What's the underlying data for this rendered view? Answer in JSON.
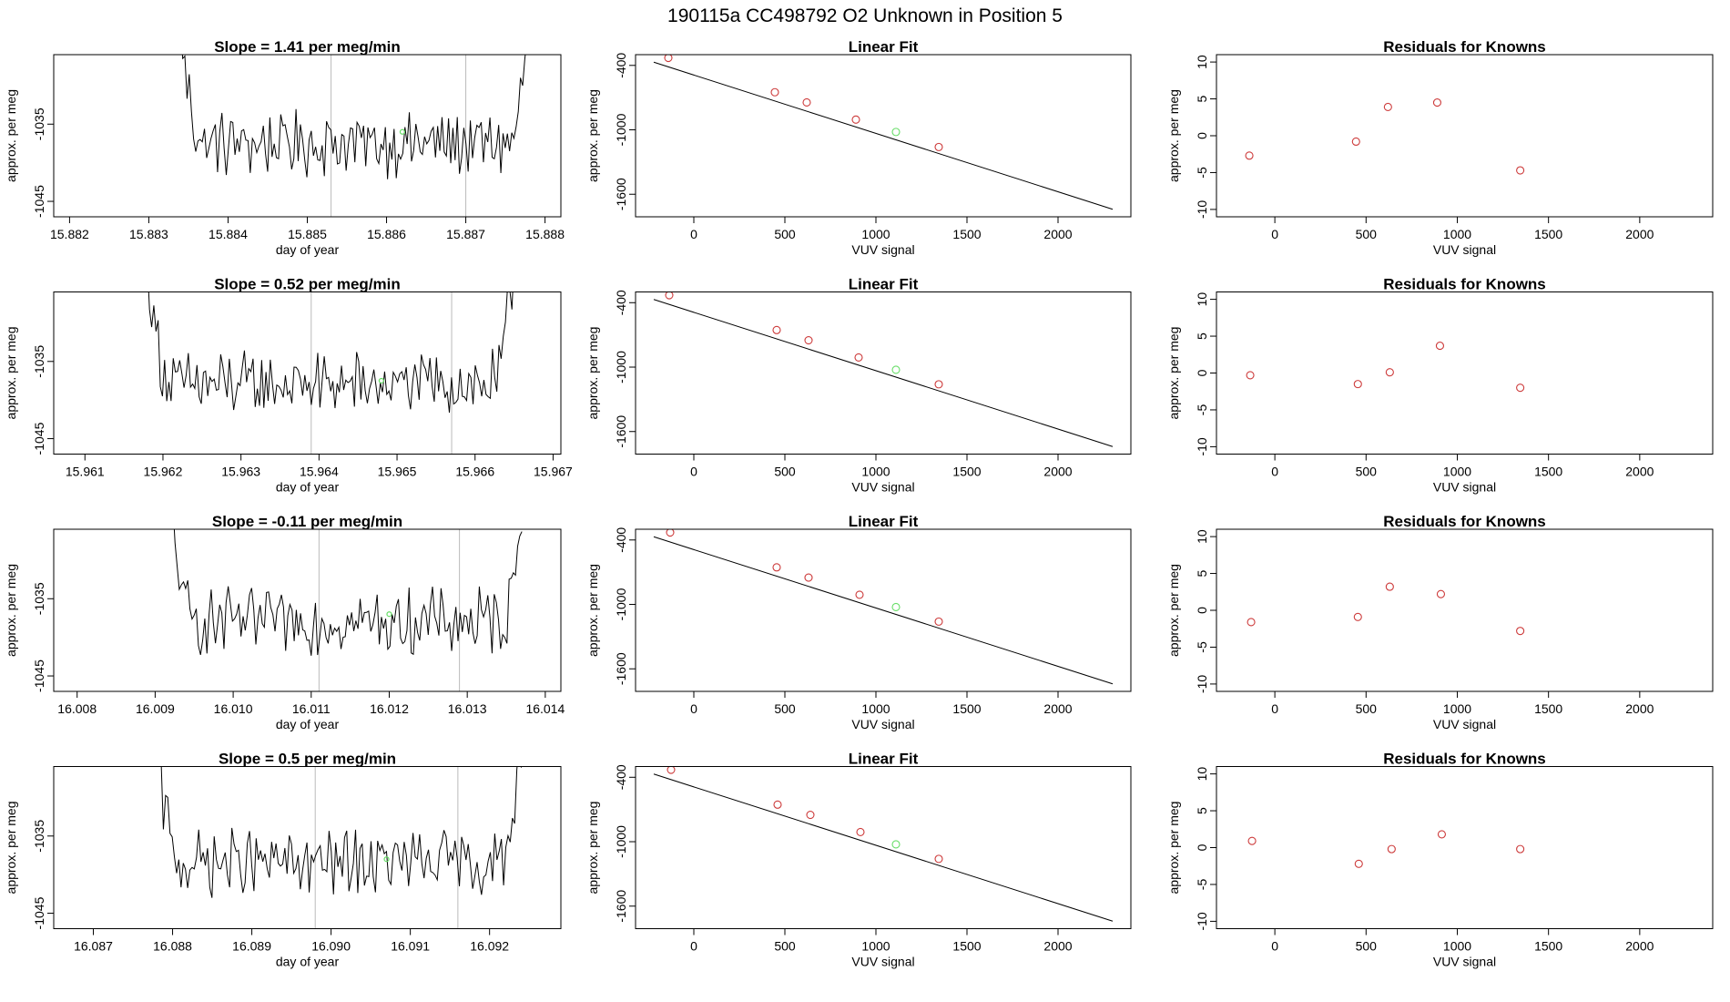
{
  "main_title": "190115a      CC498792   O2 Unknown in Position  5",
  "colors": {
    "trace": "#000000",
    "known_point": "#cd3b3b",
    "unknown_point": "#66dd66",
    "marker_line": "#bbbbbb"
  },
  "chart_data": [
    {
      "row": 1,
      "panels": [
        {
          "type": "line",
          "title": "Slope =  1.41  per meg/min",
          "xlabel": "day of year",
          "ylabel": "approx. per meg",
          "xlim": [
            15.8818,
            15.8882
          ],
          "ylim": [
            -1047,
            -1026
          ],
          "xticks": [
            15.882,
            15.883,
            15.884,
            15.885,
            15.886,
            15.887,
            15.888
          ],
          "xtick_labels": [
            "15.882",
            "15.883",
            "15.884",
            "15.885",
            "15.886",
            "15.887",
            "15.888"
          ],
          "yticks": [
            -1045,
            -1035
          ],
          "ytick_labels": [
            "-1045",
            "-1035"
          ],
          "x_start": 15.8834,
          "x_end": 15.8878,
          "n_points": 160,
          "baseline": -1037.5,
          "vlines": [
            15.8853,
            15.887
          ],
          "highlight": {
            "x": 15.8862,
            "y": -1036
          }
        },
        {
          "type": "scatter",
          "title": "Linear Fit",
          "xlabel": "VUV signal",
          "ylabel": "approx. per meg",
          "xlim": [
            -320,
            2400
          ],
          "ylim": [
            -1810,
            -300
          ],
          "xticks": [
            0,
            500,
            1000,
            1500,
            2000
          ],
          "xtick_labels": [
            "0",
            "500",
            "1000",
            "1500",
            "2000"
          ],
          "yticks": [
            -400,
            -1000,
            -1600
          ],
          "ytick_labels": [
            "-400",
            "-1000",
            "-1600"
          ],
          "line": {
            "x": [
              -220,
              2300
            ],
            "y": [
              -370,
              -1740
            ]
          },
          "knowns": {
            "x": [
              -140,
              445,
              620,
              890,
              1345
            ],
            "y": [
              -330,
              -650,
              -745,
              -905,
              -1160
            ]
          },
          "unknowns": {
            "x": [
              1110
            ],
            "y": [
              -1020
            ]
          }
        },
        {
          "type": "scatter",
          "title": "Residuals for Knowns",
          "xlabel": "VUV signal",
          "ylabel": "approx. per meg",
          "xlim": [
            -320,
            2400
          ],
          "ylim": [
            -11,
            11
          ],
          "xticks": [
            0,
            500,
            1000,
            1500,
            2000
          ],
          "xtick_labels": [
            "0",
            "500",
            "1000",
            "1500",
            "2000"
          ],
          "yticks": [
            -10,
            -5,
            0,
            5,
            10
          ],
          "ytick_labels": [
            "-10",
            "-5",
            "0",
            "5",
            "10"
          ],
          "knowns": {
            "x": [
              -140,
              445,
              620,
              890,
              1345
            ],
            "y": [
              -2.7,
              -0.8,
              3.9,
              4.5,
              -4.7
            ]
          }
        }
      ]
    },
    {
      "row": 2,
      "panels": [
        {
          "type": "line",
          "title": "Slope =  0.52  per meg/min",
          "xlabel": "day of year",
          "ylabel": "approx. per meg",
          "xlim": [
            15.9606,
            15.9671
          ],
          "ylim": [
            -1047,
            -1026
          ],
          "xticks": [
            15.961,
            15.962,
            15.963,
            15.964,
            15.965,
            15.966,
            15.967
          ],
          "xtick_labels": [
            "15.961",
            "15.962",
            "15.963",
            "15.964",
            "15.965",
            "15.966",
            "15.967"
          ],
          "yticks": [
            -1045,
            -1035
          ],
          "ytick_labels": [
            "-1045",
            "-1035"
          ],
          "x_start": 15.9618,
          "x_end": 15.9665,
          "n_points": 170,
          "baseline": -1038,
          "vlines": [
            15.9639,
            15.9657
          ],
          "highlight": {
            "x": 15.9648,
            "y": -1037.5
          }
        },
        {
          "type": "scatter",
          "title": "Linear Fit",
          "xlabel": "VUV signal",
          "ylabel": "approx. per meg",
          "xlim": [
            -320,
            2400
          ],
          "ylim": [
            -1810,
            -300
          ],
          "xticks": [
            0,
            500,
            1000,
            1500,
            2000
          ],
          "xtick_labels": [
            "0",
            "500",
            "1000",
            "1500",
            "2000"
          ],
          "yticks": [
            -400,
            -1000,
            -1600
          ],
          "ytick_labels": [
            "-400",
            "-1000",
            "-1600"
          ],
          "line": {
            "x": [
              -220,
              2300
            ],
            "y": [
              -370,
              -1740
            ]
          },
          "knowns": {
            "x": [
              -135,
              455,
              630,
              905,
              1345
            ],
            "y": [
              -330,
              -655,
              -750,
              -910,
              -1160
            ]
          },
          "unknowns": {
            "x": [
              1110
            ],
            "y": [
              -1025
            ]
          }
        },
        {
          "type": "scatter",
          "title": "Residuals for Knowns",
          "xlabel": "VUV signal",
          "ylabel": "approx. per meg",
          "xlim": [
            -320,
            2400
          ],
          "ylim": [
            -11,
            11
          ],
          "xticks": [
            0,
            500,
            1000,
            1500,
            2000
          ],
          "xtick_labels": [
            "0",
            "500",
            "1000",
            "1500",
            "2000"
          ],
          "yticks": [
            -10,
            -5,
            0,
            5,
            10
          ],
          "ytick_labels": [
            "-10",
            "-5",
            "0",
            "5",
            "10"
          ],
          "knowns": {
            "x": [
              -135,
              455,
              630,
              905,
              1345
            ],
            "y": [
              -0.3,
              -1.5,
              0.1,
              3.7,
              -2.0
            ]
          }
        }
      ]
    },
    {
      "row": 3,
      "panels": [
        {
          "type": "line",
          "title": "Slope =  -0.11  per meg/min",
          "xlabel": "day of year",
          "ylabel": "approx. per meg",
          "xlim": [
            16.0077,
            16.0142
          ],
          "ylim": [
            -1047,
            -1026
          ],
          "xticks": [
            16.008,
            16.009,
            16.01,
            16.011,
            16.012,
            16.013,
            16.014
          ],
          "xtick_labels": [
            "16.008",
            "16.009",
            "16.010",
            "16.011",
            "16.012",
            "16.013",
            "16.014"
          ],
          "yticks": [
            -1045,
            -1035
          ],
          "ytick_labels": [
            "-1045",
            "-1035"
          ],
          "x_start": 16.0092,
          "x_end": 16.0137,
          "n_points": 165,
          "baseline": -1038,
          "vlines": [
            16.0111,
            16.0129
          ],
          "highlight": {
            "x": 16.012,
            "y": -1037
          }
        },
        {
          "type": "scatter",
          "title": "Linear Fit",
          "xlabel": "VUV signal",
          "ylabel": "approx. per meg",
          "xlim": [
            -320,
            2400
          ],
          "ylim": [
            -1810,
            -300
          ],
          "xticks": [
            0,
            500,
            1000,
            1500,
            2000
          ],
          "xtick_labels": [
            "0",
            "500",
            "1000",
            "1500",
            "2000"
          ],
          "yticks": [
            -400,
            -1000,
            -1600
          ],
          "ytick_labels": [
            "-400",
            "-1000",
            "-1600"
          ],
          "line": {
            "x": [
              -220,
              2300
            ],
            "y": [
              -370,
              -1740
            ]
          },
          "knowns": {
            "x": [
              -130,
              455,
              630,
              910,
              1345
            ],
            "y": [
              -330,
              -655,
              -750,
              -910,
              -1160
            ]
          },
          "unknowns": {
            "x": [
              1110
            ],
            "y": [
              -1025
            ]
          }
        },
        {
          "type": "scatter",
          "title": "Residuals for Knowns",
          "xlabel": "VUV signal",
          "ylabel": "approx. per meg",
          "xlim": [
            -320,
            2400
          ],
          "ylim": [
            -11,
            11
          ],
          "xticks": [
            0,
            500,
            1000,
            1500,
            2000
          ],
          "xtick_labels": [
            "0",
            "500",
            "1000",
            "1500",
            "2000"
          ],
          "yticks": [
            -10,
            -5,
            0,
            5,
            10
          ],
          "ytick_labels": [
            "-10",
            "-5",
            "0",
            "5",
            "10"
          ],
          "knowns": {
            "x": [
              -130,
              455,
              630,
              910,
              1345
            ],
            "y": [
              -1.6,
              -0.9,
              3.2,
              2.2,
              -2.8
            ]
          }
        }
      ]
    },
    {
      "row": 4,
      "panels": [
        {
          "type": "line",
          "title": "Slope =  0.5  per meg/min",
          "xlabel": "day of year",
          "ylabel": "approx. per meg",
          "xlim": [
            16.0865,
            16.0929
          ],
          "ylim": [
            -1047,
            -1026
          ],
          "xticks": [
            16.087,
            16.088,
            16.089,
            16.09,
            16.091,
            16.092
          ],
          "xtick_labels": [
            "16.087",
            "16.088",
            "16.089",
            "16.090",
            "16.091",
            "16.092"
          ],
          "yticks": [
            -1045,
            -1035
          ],
          "ytick_labels": [
            "-1045",
            "-1035"
          ],
          "x_start": 16.0878,
          "x_end": 16.0924,
          "n_points": 165,
          "baseline": -1038.5,
          "vlines": [
            16.0898,
            16.0916
          ],
          "highlight": {
            "x": 16.0907,
            "y": -1038
          }
        },
        {
          "type": "scatter",
          "title": "Linear Fit",
          "xlabel": "VUV signal",
          "ylabel": "approx. per meg",
          "xlim": [
            -320,
            2400
          ],
          "ylim": [
            -1810,
            -300
          ],
          "xticks": [
            0,
            500,
            1000,
            1500,
            2000
          ],
          "xtick_labels": [
            "0",
            "500",
            "1000",
            "1500",
            "2000"
          ],
          "yticks": [
            -400,
            -1000,
            -1600
          ],
          "ytick_labels": [
            "-400",
            "-1000",
            "-1600"
          ],
          "line": {
            "x": [
              -220,
              2300
            ],
            "y": [
              -370,
              -1740
            ]
          },
          "knowns": {
            "x": [
              -125,
              460,
              640,
              915,
              1345
            ],
            "y": [
              -330,
              -655,
              -750,
              -910,
              -1160
            ]
          },
          "unknowns": {
            "x": [
              1110
            ],
            "y": [
              -1025
            ]
          }
        },
        {
          "type": "scatter",
          "title": "Residuals for Knowns",
          "xlabel": "VUV signal",
          "ylabel": "approx. per meg",
          "xlim": [
            -320,
            2400
          ],
          "ylim": [
            -11,
            11
          ],
          "xticks": [
            0,
            500,
            1000,
            1500,
            2000
          ],
          "xtick_labels": [
            "0",
            "500",
            "1000",
            "1500",
            "2000"
          ],
          "yticks": [
            -10,
            -5,
            0,
            5,
            10
          ],
          "ytick_labels": [
            "-10",
            "-5",
            "0",
            "5",
            "10"
          ],
          "knowns": {
            "x": [
              -125,
              460,
              640,
              915,
              1345
            ],
            "y": [
              0.9,
              -2.2,
              -0.2,
              1.8,
              -0.2
            ]
          }
        }
      ]
    }
  ]
}
